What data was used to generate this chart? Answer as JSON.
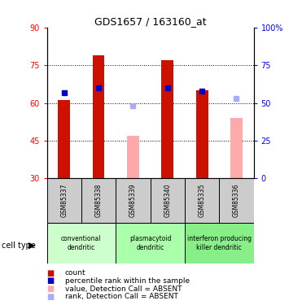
{
  "title": "GDS1657 / 163160_at",
  "samples": [
    "GSM85337",
    "GSM85338",
    "GSM85339",
    "GSM85340",
    "GSM85335",
    "GSM85336"
  ],
  "bar_data": {
    "GSM85337": {
      "count": 61,
      "rank": 57,
      "absent_value": null,
      "absent_rank": null
    },
    "GSM85338": {
      "count": 79,
      "rank": 60,
      "absent_value": null,
      "absent_rank": null
    },
    "GSM85339": {
      "count": null,
      "rank": null,
      "absent_value": 47,
      "absent_rank": 48
    },
    "GSM85340": {
      "count": 77,
      "rank": 60,
      "absent_value": null,
      "absent_rank": null
    },
    "GSM85335": {
      "count": 65,
      "rank": 58,
      "absent_value": null,
      "absent_rank": null
    },
    "GSM85336": {
      "count": null,
      "rank": null,
      "absent_value": 54,
      "absent_rank": 53
    }
  },
  "ylim_left": [
    30,
    90
  ],
  "ylim_right": [
    0,
    100
  ],
  "left_ticks": [
    30,
    45,
    60,
    75,
    90
  ],
  "right_ticks": [
    0,
    25,
    50,
    75,
    100
  ],
  "right_tick_labels": [
    "0",
    "25",
    "50",
    "75",
    "100%"
  ],
  "bar_bottom": 30,
  "bar_width": 0.35,
  "count_color": "#cc1100",
  "rank_color": "#0000cc",
  "absent_value_color": "#ffaaaa",
  "absent_rank_color": "#aaaaff",
  "ct_groups": [
    {
      "start": 0,
      "end": 1,
      "label": "conventional\ndendritic",
      "color": "#ccffcc"
    },
    {
      "start": 2,
      "end": 3,
      "label": "plasmacytoid\ndendritic",
      "color": "#aaffaa"
    },
    {
      "start": 4,
      "end": 5,
      "label": "interferon producing\nkiller dendritic",
      "color": "#88ee88"
    }
  ],
  "legend_items": [
    {
      "color": "#cc1100",
      "label": "count"
    },
    {
      "color": "#0000cc",
      "label": "percentile rank within the sample"
    },
    {
      "color": "#ffaaaa",
      "label": "value, Detection Call = ABSENT"
    },
    {
      "color": "#aaaaff",
      "label": "rank, Detection Call = ABSENT"
    }
  ]
}
